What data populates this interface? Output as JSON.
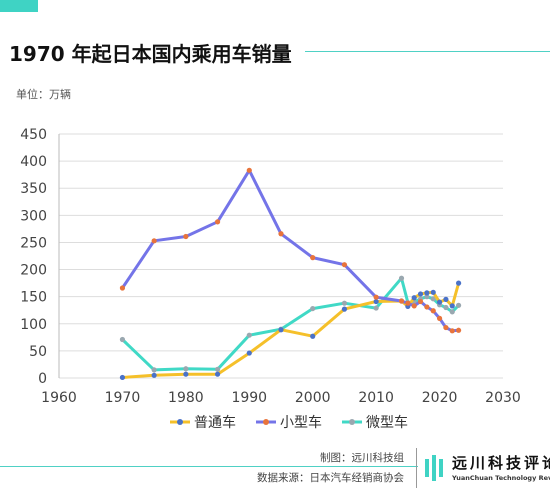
{
  "header": {
    "title": "1970 年起日本国内乘用车销量",
    "unit": "单位：万辆"
  },
  "footer": {
    "maker": "制图：远川科技组",
    "source": "数据来源：日本汽车经销商协会",
    "logo_name": "远川科技评论",
    "logo_sub": "YuanChuan Technology Review"
  },
  "colors": {
    "accent": "#3fd3c4",
    "series_regular": "#f5c02a",
    "series_small": "#7474e8",
    "series_mini": "#40d9c6",
    "marker_regular": "#4a72c8",
    "marker_small": "#e8743c",
    "marker_mini": "#9aa8b0",
    "gridline": "#dddddd"
  },
  "chart_data": {
    "type": "line",
    "title": "1970 年起日本国内乘用车销量",
    "xlabel": "",
    "ylabel": "",
    "xlim": [
      1960,
      2030
    ],
    "ylim": [
      0,
      450
    ],
    "x_ticks": [
      1960,
      1970,
      1980,
      1990,
      2000,
      2010,
      2020,
      2030
    ],
    "y_ticks": [
      0,
      50,
      100,
      150,
      200,
      250,
      300,
      350,
      400,
      450
    ],
    "grid": "horizontal",
    "legend": "bottom",
    "series": [
      {
        "name": "普通车",
        "x": [
          1970,
          1975,
          1980,
          1985,
          1990,
          1995,
          2000,
          2005,
          2010,
          2014,
          2015,
          2016,
          2017,
          2018,
          2019,
          2020,
          2021,
          2022,
          2023
        ],
        "y": [
          1,
          5,
          7,
          7,
          46,
          89,
          77,
          127,
          141,
          142,
          132,
          148,
          155,
          157,
          158,
          140,
          145,
          133,
          175
        ]
      },
      {
        "name": "小型车",
        "x": [
          1970,
          1975,
          1980,
          1985,
          1990,
          1995,
          2000,
          2005,
          2010,
          2014,
          2015,
          2016,
          2017,
          2018,
          2019,
          2020,
          2021,
          2022,
          2023
        ],
        "y": [
          166,
          253,
          261,
          288,
          383,
          266,
          222,
          209,
          149,
          142,
          138,
          133,
          141,
          131,
          124,
          110,
          93,
          87,
          88
        ]
      },
      {
        "name": "微型车",
        "x": [
          1970,
          1975,
          1980,
          1985,
          1990,
          1995,
          2000,
          2005,
          2010,
          2014,
          2015,
          2016,
          2017,
          2018,
          2019,
          2020,
          2021,
          2022,
          2023
        ],
        "y": [
          71,
          15,
          17,
          16,
          79,
          90,
          128,
          138,
          129,
          184,
          139,
          140,
          146,
          150,
          146,
          135,
          130,
          122,
          134
        ]
      }
    ]
  }
}
